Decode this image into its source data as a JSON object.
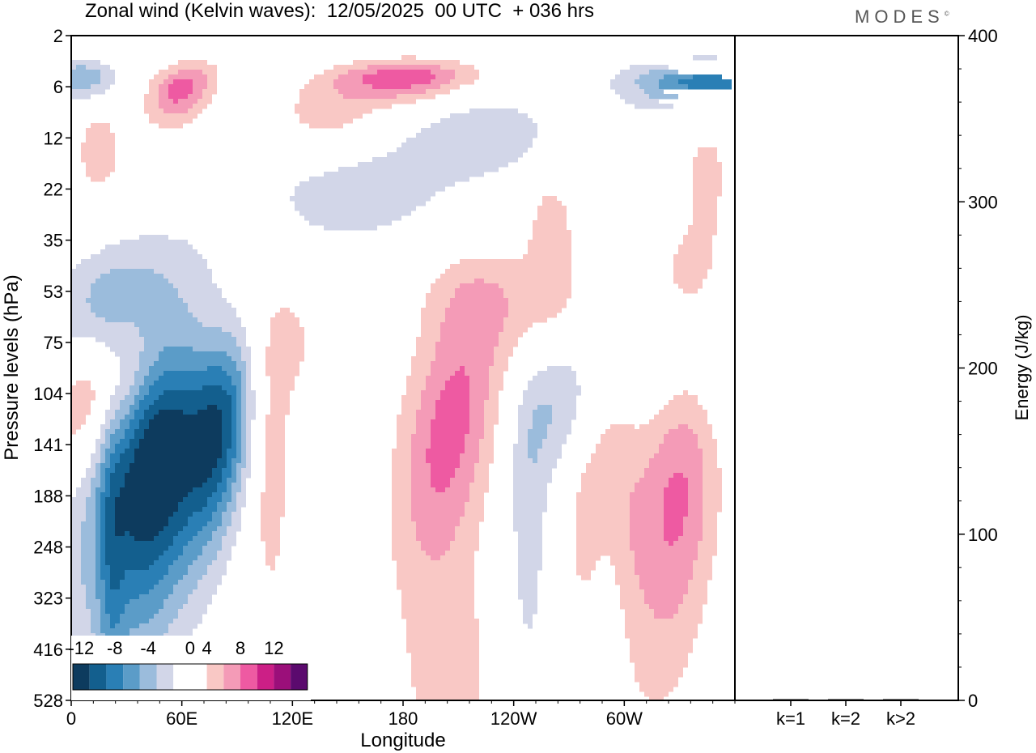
{
  "title": "Zonal wind (Kelvin waves):  12/05/2025  00 UTC  + 036 hrs",
  "brand": "MODES",
  "brand_mark": "©",
  "colors": {
    "neg": [
      "#0d3b5e",
      "#135f8e",
      "#2a7fb5",
      "#5b9cc8",
      "#9bbcdc",
      "#d2d6e8"
    ],
    "pos": [
      "#f9c8c5",
      "#f49bb7",
      "#ee5aa2",
      "#cc1f86",
      "#9b0f7a",
      "#5b0a6e"
    ],
    "zero": "#ffffff"
  },
  "chart_data": [
    {
      "type": "heatmap",
      "title": "Zonal wind (Kelvin waves)",
      "xlabel": "Longitude",
      "ylabel": "Pressure levels (hPa)",
      "x_ticks": [
        "0",
        "60E",
        "120E",
        "180",
        "120W",
        "60W"
      ],
      "x_tick_degrees": [
        0,
        60,
        120,
        180,
        240,
        300
      ],
      "xlim": [
        0,
        360
      ],
      "y_ticks": [
        2,
        6,
        12,
        22,
        35,
        53,
        75,
        104,
        141,
        188,
        248,
        323,
        416,
        528
      ],
      "y_scale": "pressure levels, 528 at bottom, 2 at top",
      "legend": {
        "placement": "bottom-left",
        "labels": [
          "-12",
          "-8",
          "-4",
          "0",
          "4",
          "8",
          "12"
        ],
        "bounds": [
          -14,
          -12,
          -10,
          -8,
          -6,
          -4,
          -2,
          2,
          4,
          6,
          8,
          10,
          12,
          14
        ]
      },
      "features": [
        {
          "sign": "neg",
          "lon": 48,
          "level": 141,
          "amp": 12,
          "lon_width": 18,
          "lev_width": 1.4,
          "tilt": 0.18
        },
        {
          "sign": "neg",
          "lon": 82,
          "level": 125,
          "amp": 10,
          "lon_width": 12,
          "lev_width": 1.0,
          "tilt": 0.2
        },
        {
          "sign": "neg",
          "lon": 30,
          "level": 165,
          "amp": 5,
          "lon_width": 28,
          "lev_width": 1.6,
          "tilt": 0.2
        },
        {
          "sign": "neg",
          "lon": 20,
          "level": 62,
          "amp": 6,
          "lon_width": 22,
          "lev_width": 0.8,
          "tilt": 0.3
        },
        {
          "sign": "neg",
          "lon": 5,
          "level": 5,
          "amp": 6,
          "lon_width": 14,
          "lev_width": 0.6,
          "tilt": 0
        },
        {
          "sign": "neg",
          "lon": 345,
          "level": 5.5,
          "amp": 9,
          "lon_width": 30,
          "lev_width": 0.7,
          "tilt": -0.05
        },
        {
          "sign": "neg",
          "lon": 270,
          "level": 100,
          "amp": 6,
          "lon_width": 18,
          "lev_width": 0.8,
          "tilt": 0.2
        },
        {
          "sign": "neg",
          "lon": 340,
          "level": 80,
          "amp": 5,
          "lon_width": 25,
          "lev_width": 0.9,
          "tilt": 0.15
        },
        {
          "sign": "neg",
          "lon": 155,
          "level": 22,
          "amp": 3,
          "lon_width": 40,
          "lev_width": 1.0,
          "tilt": 0.25
        },
        {
          "sign": "neg",
          "lon": 225,
          "level": 11,
          "amp": 3,
          "lon_width": 30,
          "lev_width": 0.9,
          "tilt": 0
        },
        {
          "sign": "neg",
          "lon": 248,
          "level": 230,
          "amp": 3,
          "lon_width": 8,
          "lev_width": 1.4,
          "tilt": 0
        },
        {
          "sign": "neg",
          "lon": 290,
          "level": 450,
          "amp": 3,
          "lon_width": 7,
          "lev_width": 1.6,
          "tilt": 0
        },
        {
          "sign": "neg",
          "lon": 22,
          "level": 300,
          "amp": 3,
          "lon_width": 5,
          "lev_width": 1.8,
          "tilt": 0
        },
        {
          "sign": "pos",
          "lon": 8,
          "level": 104,
          "amp": 6,
          "lon_width": 16,
          "lev_width": 0.8,
          "tilt": 0.25
        },
        {
          "sign": "pos",
          "lon": 40,
          "level": 85,
          "amp": 6,
          "lon_width": 20,
          "lev_width": 0.8,
          "tilt": 0.25
        },
        {
          "sign": "pos",
          "lon": 105,
          "level": 75,
          "amp": 3,
          "lon_width": 25,
          "lev_width": 0.8,
          "tilt": 0.2
        },
        {
          "sign": "pos",
          "lon": 60,
          "level": 6,
          "amp": 7,
          "lon_width": 12,
          "lev_width": 0.8,
          "tilt": 0.2
        },
        {
          "sign": "pos",
          "lon": 180,
          "level": 5,
          "amp": 8,
          "lon_width": 26,
          "lev_width": 0.6,
          "tilt": 0.12
        },
        {
          "sign": "pos",
          "lon": 140,
          "level": 9,
          "amp": 3,
          "lon_width": 20,
          "lev_width": 0.8,
          "tilt": 0
        },
        {
          "sign": "pos",
          "lon": 205,
          "level": 130,
          "amp": 7,
          "lon_width": 18,
          "lev_width": 1.2,
          "tilt": 0.25
        },
        {
          "sign": "pos",
          "lon": 288,
          "level": 160,
          "amp": 5,
          "lon_width": 14,
          "lev_width": 1.5,
          "tilt": 0
        },
        {
          "sign": "pos",
          "lon": 330,
          "level": 165,
          "amp": 7,
          "lon_width": 16,
          "lev_width": 1.6,
          "tilt": 0.15
        },
        {
          "sign": "pos",
          "lon": 108,
          "level": 175,
          "amp": 3,
          "lon_width": 8,
          "lev_width": 1.2,
          "tilt": 0
        },
        {
          "sign": "pos",
          "lon": 220,
          "level": 55,
          "amp": 3,
          "lon_width": 22,
          "lev_width": 0.6,
          "tilt": 0
        },
        {
          "sign": "pos",
          "lon": 265,
          "level": 70,
          "amp": 3,
          "lon_width": 18,
          "lev_width": 0.7,
          "tilt": 0
        },
        {
          "sign": "pos",
          "lon": 335,
          "level": 50,
          "amp": 3,
          "lon_width": 16,
          "lev_width": 0.8,
          "tilt": 0
        },
        {
          "sign": "pos",
          "lon": 15,
          "level": 14,
          "amp": 3,
          "lon_width": 10,
          "lev_width": 1.0,
          "tilt": 0
        },
        {
          "sign": "pos",
          "lon": 205,
          "level": 480,
          "amp": 3,
          "lon_width": 18,
          "lev_width": 1.0,
          "tilt": 0
        },
        {
          "sign": "pos",
          "lon": 260,
          "level": 30,
          "amp": 3,
          "lon_width": 10,
          "lev_width": 0.8,
          "tilt": 0
        },
        {
          "sign": "pos",
          "lon": 345,
          "level": 18,
          "amp": 3,
          "lon_width": 8,
          "lev_width": 0.9,
          "tilt": 0
        }
      ]
    },
    {
      "type": "bar",
      "categories": [
        "k=1",
        "k=2",
        "k>2"
      ],
      "values": [
        0.3,
        0.2,
        0.1
      ],
      "ylabel": "Energy (J/kg)",
      "ylim": [
        0,
        400
      ],
      "y_ticks": [
        0,
        100,
        200,
        300,
        400
      ]
    }
  ]
}
